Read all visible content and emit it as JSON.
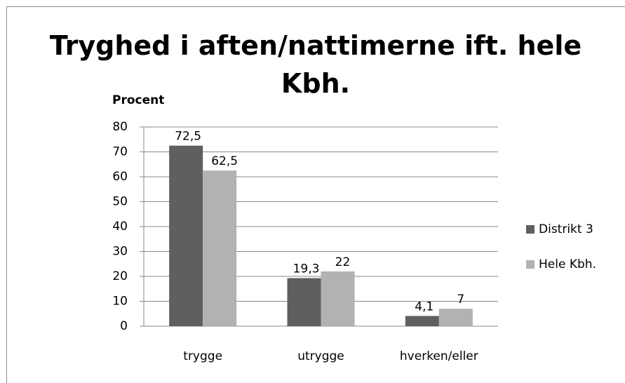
{
  "chart_data": {
    "type": "bar",
    "title": "Tryghed i aften/nattimerne ift. hele Kbh.",
    "y_label": "Procent",
    "categories": [
      "trygge",
      "utrygge",
      "hverken/eller"
    ],
    "series": [
      {
        "name": "Distrikt 3",
        "color": "#5f5f5f",
        "values": [
          72.5,
          19.3,
          4.1
        ],
        "value_labels": [
          "72,5",
          "19,3",
          "4,1"
        ]
      },
      {
        "name": "Hele Kbh.",
        "color": "#b2b2b2",
        "values": [
          62.5,
          22,
          7
        ],
        "value_labels": [
          "62,5",
          "22",
          "7"
        ]
      }
    ],
    "ylim": [
      0,
      80
    ],
    "yticks": [
      0,
      10,
      20,
      30,
      40,
      50,
      60,
      70,
      80
    ],
    "grid": true,
    "legend": "right"
  }
}
